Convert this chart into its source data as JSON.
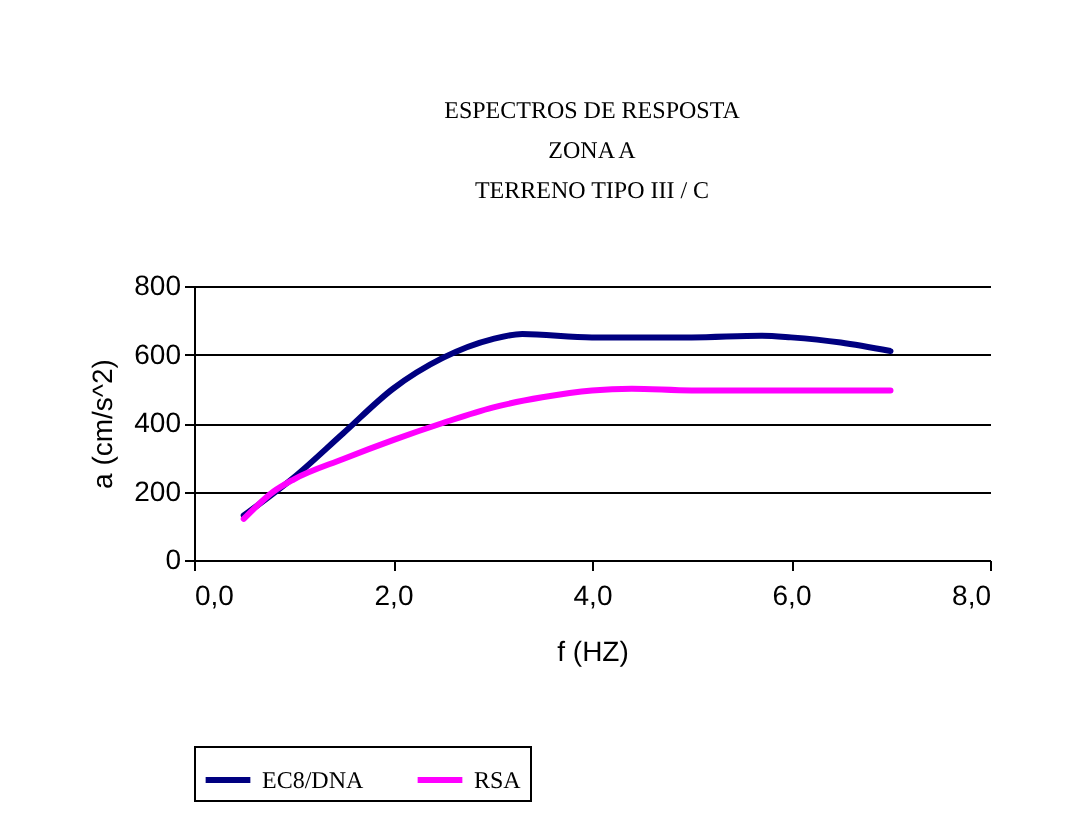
{
  "chart_data": {
    "type": "line",
    "title": "ESPECTROS DE RESPOSTA\nZONA A\nTERRENO TIPO III / C",
    "xlabel": "f (HZ)",
    "ylabel": "a (cm/s^2)",
    "xlim": [
      0,
      8
    ],
    "xticks": [
      {
        "value": 0,
        "label": "0,0"
      },
      {
        "value": 2,
        "label": "2,0"
      },
      {
        "value": 4,
        "label": "4,0"
      },
      {
        "value": 6,
        "label": "6,0"
      },
      {
        "value": 8,
        "label": "8,0"
      }
    ],
    "ylim": [
      0,
      800
    ],
    "yticks": [
      0,
      200,
      400,
      600,
      800
    ],
    "grid": "y",
    "legend": "bottom",
    "marker": "none",
    "line_style": "solid",
    "series": [
      {
        "name": "EC8/DNA",
        "color": "#000080",
        "x": [
          0.5,
          1.0,
          1.5,
          2.0,
          2.5,
          3.0,
          3.3,
          4.0,
          5.0,
          5.7,
          6.0,
          6.5,
          7.0
        ],
        "values": [
          130,
          240,
          370,
          500,
          590,
          645,
          660,
          650,
          650,
          655,
          650,
          635,
          610
        ]
      },
      {
        "name": "RSA",
        "color": "#ff00ff",
        "x": [
          0.5,
          0.8,
          1.0,
          1.5,
          2.0,
          2.5,
          3.0,
          3.5,
          4.0,
          4.4,
          5.0,
          6.0,
          7.0
        ],
        "values": [
          120,
          200,
          235,
          295,
          350,
          400,
          445,
          475,
          495,
          500,
          495,
          495,
          495
        ]
      }
    ]
  }
}
